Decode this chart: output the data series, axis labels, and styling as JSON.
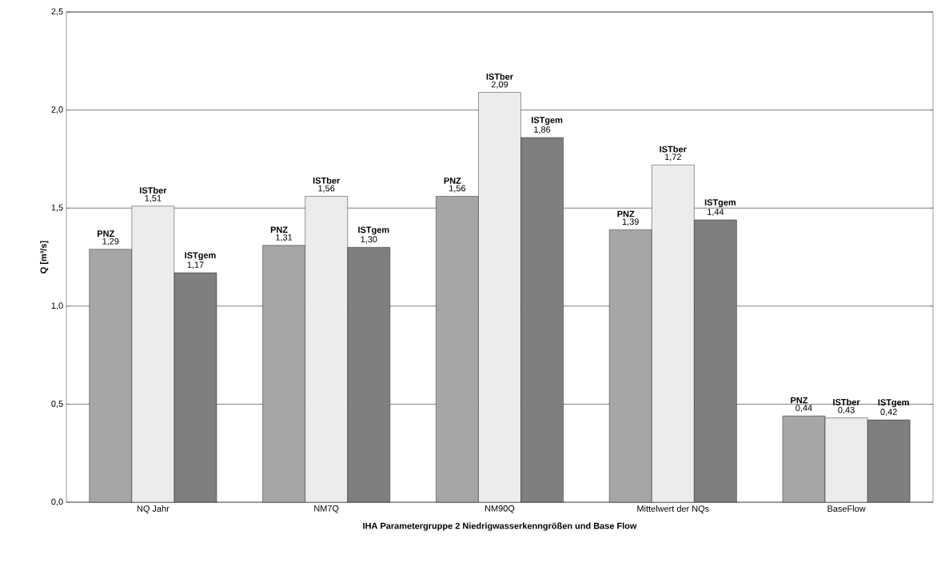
{
  "chart_data": {
    "type": "bar",
    "xlabel": "IHA Parametergruppe 2 Niedrigwasserkenngrößen und Base Flow",
    "ylabel": "Q [m³/s]",
    "categories": [
      "NQ Jahr",
      "NM7Q",
      "NM90Q",
      "Mittelwert der NQs",
      "BaseFlow"
    ],
    "series": [
      {
        "name": "PNZ",
        "color": "#a6a6a6",
        "values": [
          1.29,
          1.31,
          1.56,
          1.39,
          0.44
        ],
        "value_labels": [
          "1,29",
          "1,31",
          "1,56",
          "1,39",
          "0,44"
        ]
      },
      {
        "name": "ISTber",
        "color": "#ececec",
        "values": [
          1.51,
          1.56,
          2.09,
          1.72,
          0.43
        ],
        "value_labels": [
          "1,51",
          "1,56",
          "2,09",
          "1,72",
          "0,43"
        ]
      },
      {
        "name": "ISTgem",
        "color": "#7f7f7f",
        "values": [
          1.17,
          1.3,
          1.86,
          1.44,
          0.42
        ],
        "value_labels": [
          "1,17",
          "1,30",
          "1,86",
          "1,44",
          "0,42"
        ]
      }
    ],
    "ylim": [
      0,
      2.5
    ],
    "yticks": [
      {
        "value": 0,
        "label": "0,0"
      },
      {
        "value": 0.5,
        "label": "0,5"
      },
      {
        "value": 1,
        "label": "1,0"
      },
      {
        "value": 1.5,
        "label": "1,5"
      },
      {
        "value": 2,
        "label": "2,0"
      },
      {
        "value": 2.5,
        "label": "2,5"
      }
    ],
    "grid": "y"
  }
}
